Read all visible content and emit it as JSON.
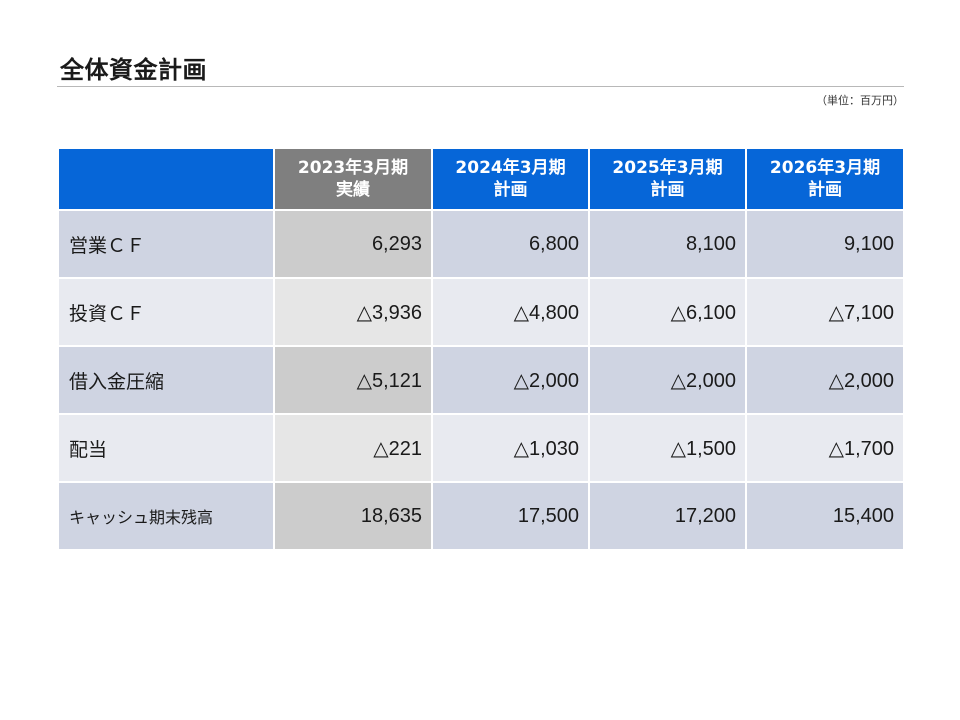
{
  "page": {
    "title": "全体資金計画",
    "unit_note": "（単位：百万円）"
  },
  "colors": {
    "header_blue": "#0666d8",
    "header_gray": "#7f7f7f",
    "row_dark": "#cfd4e2",
    "row_light": "#e8eaf0",
    "actual_dark": "#cccccc",
    "actual_light": "#e6e6e6"
  },
  "table": {
    "header_corner": "",
    "columns": [
      {
        "line1": "2023年3月期",
        "line2": "実績"
      },
      {
        "line1": "2024年3月期",
        "line2": "計画"
      },
      {
        "line1": "2025年3月期",
        "line2": "計画"
      },
      {
        "line1": "2026年3月期",
        "line2": "計画"
      }
    ],
    "rows": [
      {
        "label": "営業ＣＦ",
        "values": [
          "6,293",
          "6,800",
          "8,100",
          "9,100"
        ]
      },
      {
        "label": "投資ＣＦ",
        "values": [
          "△3,936",
          "△4,800",
          "△6,100",
          "△7,100"
        ]
      },
      {
        "label": "借入金圧縮",
        "values": [
          "△5,121",
          "△2,000",
          "△2,000",
          "△2,000"
        ]
      },
      {
        "label": "配当",
        "values": [
          "△221",
          "△1,030",
          "△1,500",
          "△1,700"
        ]
      },
      {
        "label": "キャッシュ期末残高",
        "values": [
          "18,635",
          "17,500",
          "17,200",
          "15,400"
        ]
      }
    ]
  }
}
